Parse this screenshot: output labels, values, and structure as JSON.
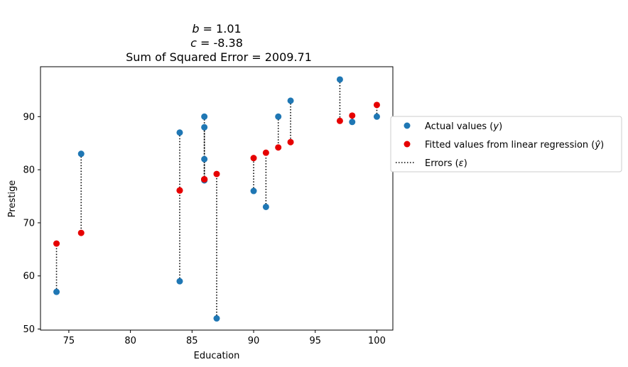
{
  "chart_data": {
    "type": "scatter",
    "title_lines": {
      "b_symbol": "b",
      "b_value": " = 1.01",
      "c_symbol": "c",
      "c_value": " = -8.38",
      "sse": "Sum of Squared Error = 2009.71"
    },
    "xlabel": "Education",
    "ylabel": "Prestige",
    "xlim": [
      72.7,
      101.3
    ],
    "ylim": [
      49.8,
      99.4
    ],
    "xticks": [
      75,
      80,
      85,
      90,
      95,
      100
    ],
    "yticks": [
      50,
      60,
      70,
      80,
      90
    ],
    "grid": false,
    "legend_position": "right-outside",
    "legend": {
      "actual": "Actual values (y)",
      "fitted": "Fitted values from linear regression (ŷ)",
      "errors": "Errors (ε)"
    },
    "colors": {
      "actual": "#1f77b4",
      "fitted": "#e60000",
      "errors": "#000000"
    },
    "series": [
      {
        "name": "Actual values (y)",
        "x": [
          74,
          76,
          84,
          84,
          86,
          86,
          86,
          86,
          87,
          90,
          91,
          92,
          93,
          97,
          98,
          100
        ],
        "y": [
          57,
          83,
          87,
          59,
          90,
          88,
          82,
          78,
          52,
          76,
          73,
          90,
          93,
          97,
          89,
          90
        ]
      },
      {
        "name": "Fitted values from linear regression (ŷ)",
        "x": [
          74,
          76,
          84,
          84,
          86,
          86,
          86,
          86,
          87,
          90,
          91,
          92,
          93,
          97,
          98,
          100
        ],
        "y": [
          66.1,
          68.1,
          76.1,
          76.1,
          78.2,
          78.2,
          78.2,
          78.2,
          79.2,
          82.2,
          83.2,
          84.2,
          85.2,
          89.2,
          90.2,
          92.2
        ]
      }
    ]
  }
}
